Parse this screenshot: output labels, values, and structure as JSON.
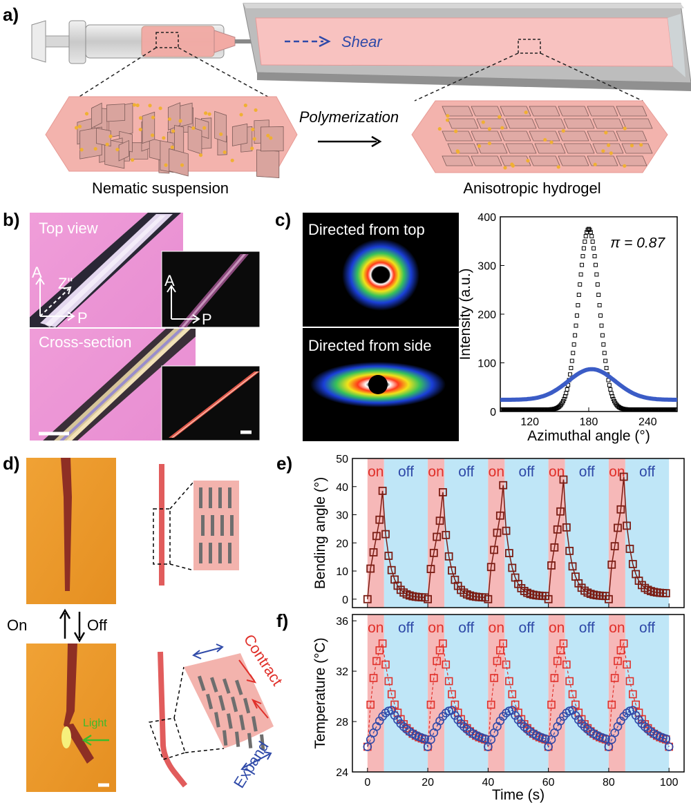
{
  "panels": {
    "a": {
      "label": "a)",
      "shear": "Shear",
      "polymerization": "Polymerization",
      "left_caption": "Nematic suspension",
      "right_caption": "Anisotropic hydrogel"
    },
    "b": {
      "label": "b)",
      "top_view": "Top view",
      "cross_section": "Cross-section",
      "axis_a": "A",
      "axis_p": "P",
      "axis_z": "Z\""
    },
    "c": {
      "label": "c)",
      "top_image": "Directed from top",
      "side_image": "Directed from side"
    },
    "d": {
      "label": "d)",
      "on": "On",
      "off": "Off",
      "light": "Light",
      "contract": "Contract",
      "expand": "Expand"
    },
    "e": {
      "label": "e)",
      "on": "on",
      "off": "off"
    },
    "f": {
      "label": "f)",
      "on": "on",
      "off": "off"
    }
  },
  "colors": {
    "dark_red": "#7b1d14",
    "red": "#e0302a",
    "blue": "#2e49a8",
    "on_band": "#f6b8b8",
    "off_band": "#bfe6f7",
    "pink": "#f3b3ad"
  },
  "chart_data": [
    {
      "id": "c-intensity",
      "type": "line",
      "xlabel": "Azimuthal angle (°)",
      "ylabel": "Intensity (a.u.)",
      "xlim": [
        90,
        270
      ],
      "ylim": [
        0,
        400
      ],
      "xticks": [
        120,
        180,
        240
      ],
      "yticks": [
        0,
        100,
        200,
        300,
        400
      ],
      "annotation": "π = 0.87",
      "series": [
        {
          "marker": "square-open",
          "color": "#000000",
          "peak_x": 180,
          "peak_y": 375,
          "baseline": 4,
          "sigma": 10.5
        },
        {
          "marker": "line",
          "color": "#3b5cc6",
          "peak_x": 183,
          "peak_y": 87,
          "baseline": 24,
          "sigma": 24
        }
      ]
    },
    {
      "id": "e-bending",
      "type": "scatter",
      "xlim": [
        -5,
        105
      ],
      "ylim": [
        -3,
        50
      ],
      "ylabel": "Bending angle (°)",
      "yticks": [
        0,
        10,
        20,
        30,
        40,
        50
      ],
      "on_intervals": [
        [
          0,
          5.5
        ],
        [
          20,
          25.5
        ],
        [
          40,
          45.5
        ],
        [
          60,
          65.5
        ],
        [
          80,
          85.5
        ]
      ],
      "cycles": [
        {
          "start": 0,
          "peak": 38.5,
          "end": 0.5
        },
        {
          "start": 20,
          "peak": 38,
          "end": 0.5
        },
        {
          "start": 40,
          "peak": 40.5,
          "end": 1
        },
        {
          "start": 60,
          "peak": 42.5,
          "end": 1
        },
        {
          "start": 80,
          "peak": 43.5,
          "end": 2
        }
      ]
    },
    {
      "id": "f-temperature",
      "type": "scatter",
      "xlim": [
        -5,
        105
      ],
      "ylim": [
        24,
        36.5
      ],
      "xlabel": "Time (s)",
      "ylabel": "Temperature (°C)",
      "xticks": [
        0,
        20,
        40,
        60,
        80,
        100
      ],
      "yticks": [
        24,
        28,
        32,
        36
      ],
      "on_intervals": [
        [
          0,
          5.5
        ],
        [
          20,
          25.5
        ],
        [
          40,
          45.5
        ],
        [
          60,
          65.5
        ],
        [
          80,
          85.5
        ]
      ],
      "series": [
        {
          "marker": "square-open",
          "color": "#e0302a",
          "baseline": 26,
          "peak": 34.2
        },
        {
          "marker": "circle-open",
          "color": "#2e49a8",
          "baseline": 26,
          "peak": 28.9
        }
      ]
    }
  ]
}
